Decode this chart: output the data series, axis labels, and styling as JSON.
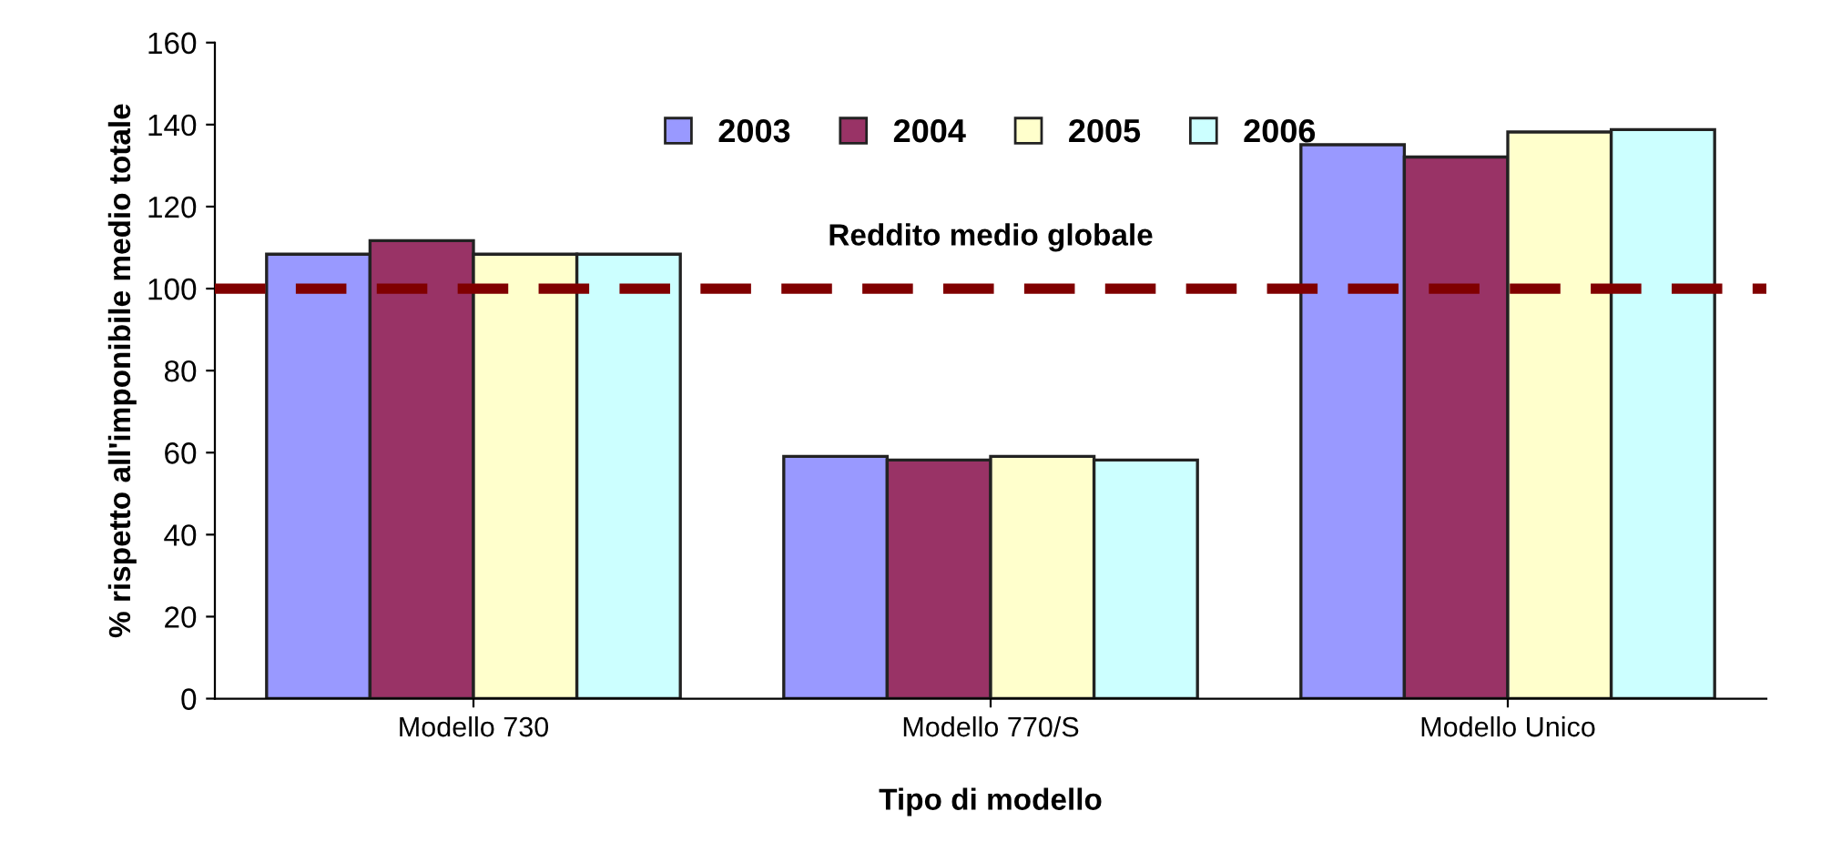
{
  "chart_data": {
    "type": "bar",
    "xlabel": "Tipo di modello",
    "ylabel": "% rispetto all'imponibile medio totale",
    "categories": [
      "Modello 730",
      "Modello 770/S",
      "Modello Unico"
    ],
    "series": [
      {
        "name": "2003",
        "color": "#9999ff",
        "values": [
          108.4,
          59.1,
          135.1
        ]
      },
      {
        "name": "2004",
        "color": "#993366",
        "values": [
          111.7,
          58.2,
          132.1
        ]
      },
      {
        "name": "2005",
        "color": "#ffffcc",
        "values": [
          108.4,
          59.1,
          138.2
        ]
      },
      {
        "name": "2006",
        "color": "#ccffff",
        "values": [
          108.4,
          58.2,
          138.8
        ]
      }
    ],
    "ylim": [
      0,
      160
    ],
    "yticks": [
      0,
      20,
      40,
      60,
      80,
      100,
      120,
      140,
      160
    ],
    "ref_lines": [
      {
        "axis": "y",
        "value": 100,
        "label": "Reddito medio globale",
        "color": "#800000",
        "line_style": "dashed"
      }
    ],
    "grid": false,
    "legend": "top"
  }
}
